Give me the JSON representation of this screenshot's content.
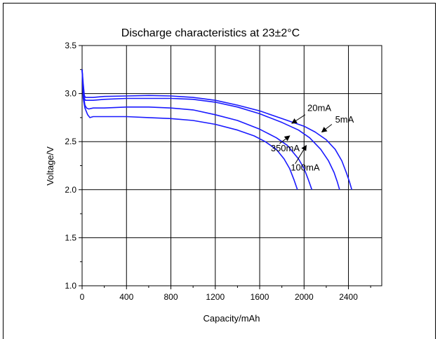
{
  "chart_data": {
    "type": "line",
    "title": "Discharge  characteristics at 23±2°C",
    "xlabel": "Capacity/mAh",
    "ylabel": "Voltage/V",
    "xlim": [
      0,
      2700
    ],
    "ylim": [
      1.0,
      3.5
    ],
    "xticks": [
      0,
      400,
      800,
      1200,
      1600,
      2000,
      2400
    ],
    "yticks": [
      1.0,
      1.5,
      2.0,
      2.5,
      3.0,
      3.5
    ],
    "xtick_labels": [
      "0",
      "400",
      "800",
      "1200",
      "1600",
      "2000",
      "2400"
    ],
    "ytick_labels": [
      "1.0",
      "1.5",
      "2.0",
      "2.5",
      "3.0",
      "3.5"
    ],
    "grid": true,
    "line_color": "#1a1aff",
    "series": [
      {
        "name": "5mA",
        "x": [
          0,
          10,
          20,
          30,
          60,
          100,
          200,
          400,
          600,
          800,
          1000,
          1200,
          1400,
          1600,
          1800,
          2000,
          2100,
          2200,
          2280,
          2340,
          2380,
          2410,
          2430
        ],
        "y": [
          3.25,
          3.1,
          2.98,
          2.96,
          2.96,
          2.96,
          2.97,
          2.975,
          2.98,
          2.975,
          2.96,
          2.93,
          2.88,
          2.82,
          2.74,
          2.66,
          2.6,
          2.52,
          2.42,
          2.3,
          2.18,
          2.08,
          2.0
        ]
      },
      {
        "name": "20mA",
        "x": [
          0,
          10,
          20,
          30,
          60,
          100,
          200,
          400,
          600,
          800,
          1000,
          1200,
          1400,
          1600,
          1800,
          1950,
          2050,
          2150,
          2220,
          2270,
          2300,
          2320
        ],
        "y": [
          3.25,
          3.05,
          2.95,
          2.93,
          2.93,
          2.93,
          2.94,
          2.95,
          2.95,
          2.95,
          2.94,
          2.91,
          2.86,
          2.79,
          2.7,
          2.62,
          2.54,
          2.42,
          2.3,
          2.18,
          2.08,
          2.0
        ]
      },
      {
        "name": "100mA",
        "x": [
          0,
          10,
          25,
          40,
          60,
          100,
          200,
          400,
          600,
          800,
          1000,
          1200,
          1400,
          1600,
          1750,
          1850,
          1950,
          2000,
          2040,
          2070
        ],
        "y": [
          3.25,
          3.0,
          2.88,
          2.85,
          2.84,
          2.85,
          2.85,
          2.86,
          2.86,
          2.85,
          2.83,
          2.78,
          2.72,
          2.63,
          2.54,
          2.46,
          2.32,
          2.22,
          2.1,
          2.0
        ]
      },
      {
        "name": "350mA",
        "x": [
          0,
          10,
          25,
          50,
          70,
          100,
          200,
          400,
          600,
          800,
          1000,
          1200,
          1400,
          1550,
          1650,
          1750,
          1820,
          1870,
          1910,
          1940
        ],
        "y": [
          3.25,
          2.95,
          2.85,
          2.78,
          2.75,
          2.76,
          2.76,
          2.76,
          2.75,
          2.74,
          2.72,
          2.68,
          2.62,
          2.56,
          2.5,
          2.42,
          2.32,
          2.22,
          2.1,
          2.0
        ]
      }
    ],
    "annotations": [
      {
        "text": "20mA",
        "text_x": 2030,
        "text_y": 2.82,
        "arrow_from": [
          2010,
          2.78
        ],
        "arrow_to": [
          1890,
          2.69
        ]
      },
      {
        "text": "5mA",
        "text_x": 2280,
        "text_y": 2.7,
        "arrow_from": [
          2250,
          2.68
        ],
        "arrow_to": [
          2160,
          2.6
        ]
      },
      {
        "text": "350mA",
        "text_x": 1700,
        "text_y": 2.4,
        "arrow_from": [
          1780,
          2.48
        ],
        "arrow_to": [
          1870,
          2.56
        ]
      },
      {
        "text": "100mA",
        "text_x": 1880,
        "text_y": 2.2,
        "arrow_from": [
          1920,
          2.27
        ],
        "arrow_to": [
          2020,
          2.46
        ]
      }
    ]
  }
}
